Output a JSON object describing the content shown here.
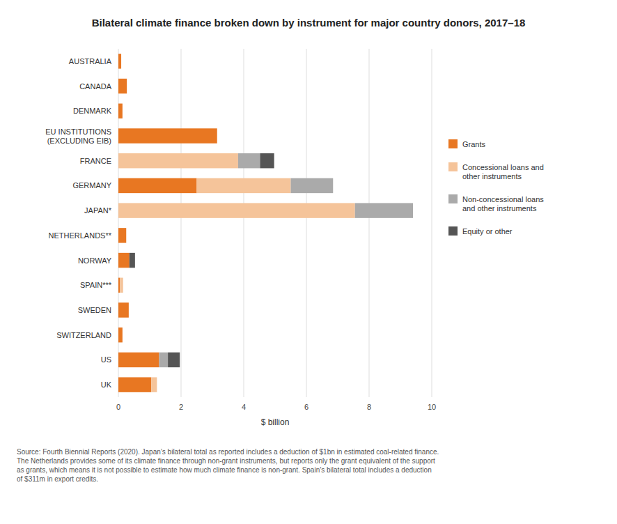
{
  "chart_data": {
    "type": "bar",
    "orientation": "horizontal",
    "stacked": true,
    "title": "Bilateral climate finance broken down by instrument for major country donors, 2017–18",
    "xlabel": "$ billion",
    "annotations": [
      "Source: Fourth Biennial Reports (2020). Japan’s bilateral total as reported includes a deduction of $1bn in estimated coal-related finance.\nThe Netherlands provides some of its climate finance through non-grant instruments, but reports only the grant equivalent of the support\nas grants, which means it is not possible to estimate how much climate finance is non-grant. Spain’s bilateral total includes a deduction\nof $311m in export credits."
    ],
    "categories": [
      "UK",
      "US",
      "SWITZERLAND",
      "SWEDEN",
      "SPAIN***",
      "NORWAY",
      "NETHERLANDS**",
      "JAPAN*",
      "GERMANY",
      "FRANCE",
      "EU INSTITUTIONS\n(EXCLUDING EIB)",
      "DENMARK",
      "CANADA",
      "AUSTRALIA"
    ],
    "series": [
      {
        "name": "Grants",
        "color": "#E87722",
        "values": [
          1.05,
          1.3,
          0.13,
          0.33,
          0.05,
          0.35,
          0.25,
          0.0,
          2.5,
          0.0,
          3.15,
          0.13,
          0.27,
          0.09
        ]
      },
      {
        "name": "Concessional loans and\nother instruments",
        "color": "#F5C49A",
        "values": [
          0.18,
          0.0,
          0.0,
          0.0,
          0.1,
          0.0,
          0.0,
          7.55,
          3.0,
          3.82,
          0.0,
          0.0,
          0.0,
          0.0
        ]
      },
      {
        "name": "Non-concessional loans\nand other instruments",
        "color": "#AAAAAA",
        "values": [
          0.0,
          0.28,
          0.0,
          0.0,
          0.0,
          0.0,
          0.0,
          1.85,
          1.35,
          0.7,
          0.0,
          0.0,
          0.0,
          0.0
        ]
      },
      {
        "name": "Equity or other",
        "color": "#555555",
        "values": [
          0.0,
          0.38,
          0.0,
          0.0,
          0.0,
          0.18,
          0.0,
          0.0,
          0.0,
          0.45,
          0.0,
          0.0,
          0.0,
          0.0
        ]
      }
    ],
    "xlim": [
      0,
      10
    ],
    "xticks": [
      0,
      2,
      4,
      6,
      8,
      10
    ],
    "grid": true,
    "legend": "right"
  }
}
